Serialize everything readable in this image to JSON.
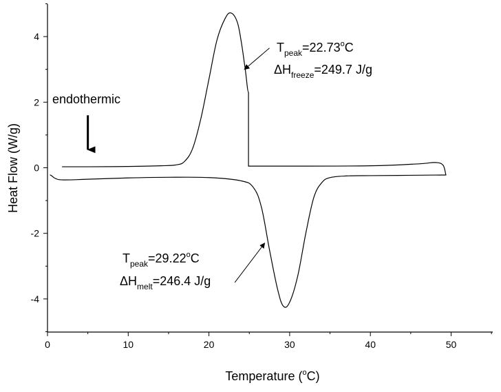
{
  "chart_data": {
    "type": "line",
    "xlabel": {
      "base": "Temperature (",
      "sup": "o",
      "tail": "C)"
    },
    "ylabel": "Heat Flow (W/g)",
    "xlim": [
      0,
      55
    ],
    "ylim": [
      -5,
      5
    ],
    "x_ticks": [
      0,
      10,
      20,
      30,
      40,
      50
    ],
    "x_tick_labels": [
      "0",
      "10",
      "20",
      "30",
      "40",
      "50"
    ],
    "y_ticks": [
      -4,
      -2,
      0,
      2,
      4
    ],
    "y_tick_labels": [
      "-4",
      "-2",
      "0",
      "2",
      "4"
    ],
    "grid": false,
    "series": [
      {
        "x": [
          1.8,
          5,
          10,
          14,
          16,
          17,
          18,
          19,
          20,
          21,
          22,
          22.73,
          23.5,
          24,
          24.5,
          24.9,
          24.9,
          30,
          40,
          46,
          48,
          49,
          49.4
        ],
        "y": [
          0.03,
          0.03,
          0.04,
          0.06,
          0.09,
          0.2,
          0.6,
          1.5,
          2.7,
          3.9,
          4.55,
          4.72,
          4.45,
          3.85,
          3.0,
          2.3,
          0.05,
          0.05,
          0.06,
          0.12,
          0.16,
          0.08,
          -0.22
        ]
      },
      {
        "x": [
          0.3,
          1,
          2,
          5,
          10,
          15,
          20,
          24,
          25.5,
          26.5,
          27.5,
          28.5,
          29.22,
          30,
          31,
          32,
          33,
          34,
          35,
          37,
          40,
          45,
          49.4
        ],
        "y": [
          -0.22,
          -0.33,
          -0.37,
          -0.35,
          -0.31,
          -0.29,
          -0.3,
          -0.4,
          -0.6,
          -1.2,
          -2.5,
          -3.7,
          -4.22,
          -4.1,
          -3.3,
          -2.0,
          -0.9,
          -0.45,
          -0.3,
          -0.25,
          -0.24,
          -0.23,
          -0.22
        ]
      }
    ],
    "annotations": {
      "endothermic": {
        "label": "endothermic",
        "arrow_x": 5,
        "arrow_from_y": 1.6,
        "arrow_to_y": 0.55
      },
      "freeze": {
        "t_main": "T",
        "t_sub": "peak",
        "t_value_prefix": "=22.73",
        "t_sup": "o",
        "t_unit": "C",
        "h_main": "ΔH",
        "h_sub": "freeze",
        "h_value": "=249.7 J/g",
        "arrow_from_x": 27.5,
        "arrow_from_y": 3.65,
        "arrow_to_x": 24.4,
        "arrow_to_y": 3.0
      },
      "melt": {
        "t_main": "T",
        "t_sub": "peak",
        "t_value_prefix": "=29.22",
        "t_sup": "o",
        "t_unit": "C",
        "h_main": "ΔH",
        "h_sub": "melt",
        "h_value": "=246.4 J/g",
        "arrow_from_x": 23.2,
        "arrow_from_y": -3.5,
        "arrow_to_x": 26.9,
        "arrow_to_y": -2.3
      }
    }
  }
}
